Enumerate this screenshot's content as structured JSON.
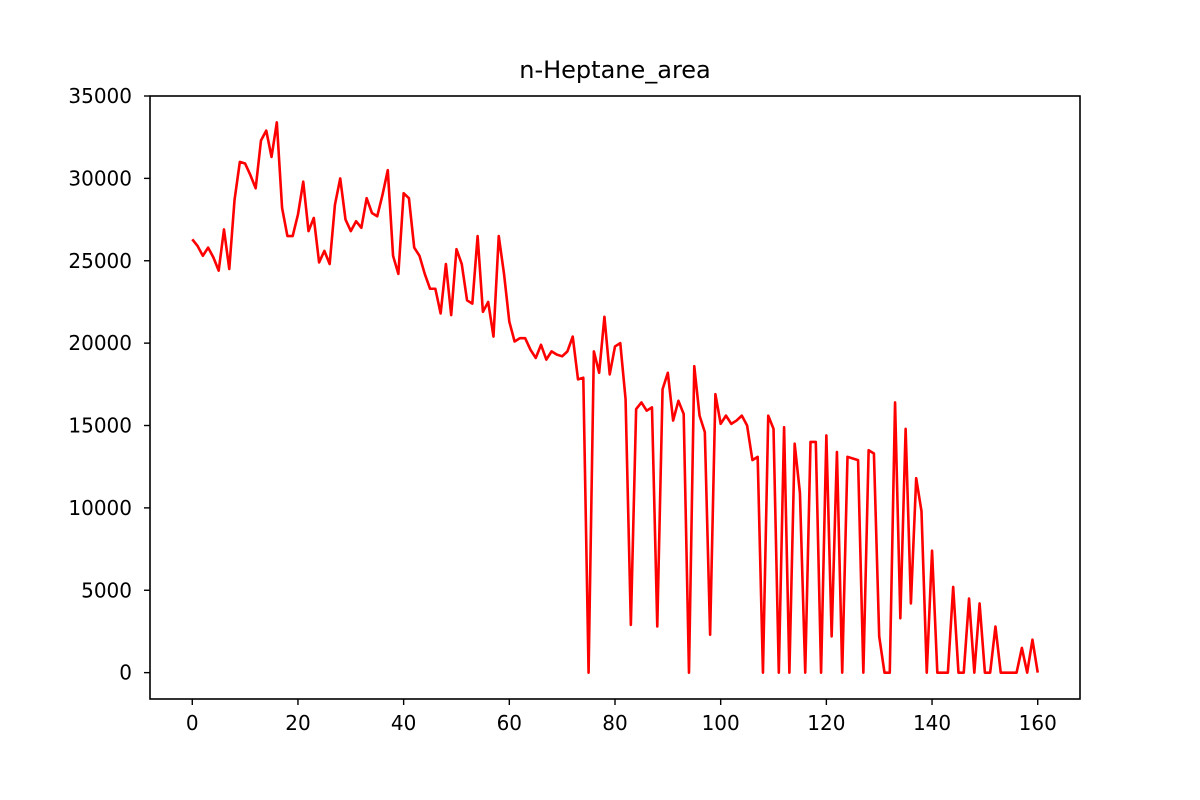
{
  "chart_data": {
    "type": "line",
    "title": "n-Heptane_area",
    "xlabel": "",
    "ylabel": "",
    "xlim": [
      -8,
      168
    ],
    "ylim": [
      -1600,
      35000
    ],
    "xticks": [
      0,
      20,
      40,
      60,
      80,
      100,
      120,
      140,
      160
    ],
    "yticks": [
      0,
      5000,
      10000,
      15000,
      20000,
      25000,
      30000,
      35000
    ],
    "grid": false,
    "legend": "none",
    "series": [
      {
        "color": "#ff0000",
        "x": [
          0,
          1,
          2,
          3,
          4,
          5,
          6,
          7,
          8,
          9,
          10,
          11,
          12,
          13,
          14,
          15,
          16,
          17,
          18,
          19,
          20,
          21,
          22,
          23,
          24,
          25,
          26,
          27,
          28,
          29,
          30,
          31,
          32,
          33,
          34,
          35,
          36,
          37,
          38,
          39,
          40,
          41,
          42,
          43,
          44,
          45,
          46,
          47,
          48,
          49,
          50,
          51,
          52,
          53,
          54,
          55,
          56,
          57,
          58,
          59,
          60,
          61,
          62,
          63,
          64,
          65,
          66,
          67,
          68,
          69,
          70,
          71,
          72,
          73,
          74,
          75,
          76,
          77,
          78,
          79,
          80,
          81,
          82,
          83,
          84,
          85,
          86,
          87,
          88,
          89,
          90,
          91,
          92,
          93,
          94,
          95,
          96,
          97,
          98,
          99,
          100,
          101,
          102,
          103,
          104,
          105,
          106,
          107,
          108,
          109,
          110,
          111,
          112,
          113,
          114,
          115,
          116,
          117,
          118,
          119,
          120,
          121,
          122,
          123,
          124,
          125,
          126,
          127,
          128,
          129,
          130,
          131,
          132,
          133,
          134,
          135,
          136,
          137,
          138,
          139,
          140,
          141,
          142,
          143,
          144,
          145,
          146,
          147,
          148,
          149,
          150,
          151,
          152,
          153,
          154,
          155,
          156,
          157,
          158,
          159,
          160
        ],
        "y": [
          26300,
          25900,
          25300,
          25800,
          25200,
          24400,
          26900,
          24500,
          28700,
          31000,
          30900,
          30200,
          29400,
          32300,
          32900,
          31300,
          33400,
          28200,
          26500,
          26500,
          27800,
          29800,
          26800,
          27600,
          24900,
          25600,
          24800,
          28400,
          30000,
          27500,
          26800,
          27400,
          27000,
          28800,
          27900,
          27700,
          29000,
          30500,
          25300,
          24200,
          29100,
          28800,
          25800,
          25300,
          24200,
          23300,
          23300,
          21800,
          24800,
          21700,
          25700,
          24800,
          22600,
          22400,
          26500,
          21900,
          22500,
          20400,
          26500,
          24200,
          21300,
          20100,
          20300,
          20300,
          19600,
          19100,
          19900,
          19000,
          19500,
          19300,
          19200,
          19500,
          20400,
          17800,
          17900,
          0,
          19500,
          18200,
          21600,
          18100,
          19800,
          20000,
          16600,
          2900,
          16000,
          16400,
          15900,
          16100,
          2800,
          17200,
          18200,
          15300,
          16500,
          15700,
          0,
          18600,
          15600,
          14600,
          2300,
          16900,
          15100,
          15600,
          15100,
          15300,
          15600,
          15000,
          12900,
          13100,
          0,
          15600,
          14800,
          0,
          14900,
          0,
          13900,
          10900,
          0,
          14000,
          14000,
          0,
          14400,
          2200,
          13400,
          0,
          13100,
          13000,
          12900,
          0,
          13500,
          13300,
          2200,
          0,
          0,
          16400,
          3300,
          14800,
          4200,
          11800,
          9800,
          0,
          7400,
          0,
          0,
          0,
          5200,
          0,
          0,
          4500,
          0,
          4200,
          0,
          0,
          2800,
          0,
          0,
          0,
          0,
          1500,
          0,
          2000,
          0
        ]
      }
    ]
  }
}
